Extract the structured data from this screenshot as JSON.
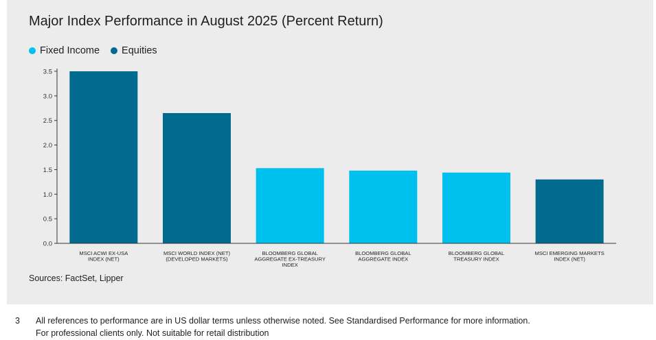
{
  "chart_data": {
    "type": "bar",
    "title": "Major Index Performance in August 2025 (Percent Return)",
    "xlabel": "",
    "ylabel": "",
    "ylim": [
      0,
      3.5
    ],
    "yticks": [
      "0.0",
      "0.5",
      "1.0",
      "1.5",
      "2.0",
      "2.5",
      "3.0",
      "3.5"
    ],
    "grid": false,
    "legend_position": "top-left",
    "legend": [
      {
        "name": "Fixed Income",
        "color": "#00c0f0"
      },
      {
        "name": "Equities",
        "color": "#006b8f"
      }
    ],
    "categories": [
      [
        "MSCI ACWI EX-USA",
        "INDEX (NET)"
      ],
      [
        "MSCI WORLD INDEX (NET)",
        "(DEVELOPED MARKETS)"
      ],
      [
        "BLOOMBERG GLOBAL",
        "AGGREGATE EX-TREASURY",
        "INDEX"
      ],
      [
        "BLOOMBERG GLOBAL",
        "AGGREGATE INDEX"
      ],
      [
        "BLOOMBERG GLOBAL",
        "TREASURY INDEX"
      ],
      [
        "MSCI EMERGING MARKETS",
        "INDEX (NET)"
      ]
    ],
    "values": [
      3.5,
      2.65,
      1.53,
      1.48,
      1.44,
      1.3
    ],
    "bar_series": [
      "Equities",
      "Equities",
      "Fixed Income",
      "Fixed Income",
      "Fixed Income",
      "Equities"
    ]
  },
  "source": "Sources: FactSet, Lipper",
  "footnote": {
    "number": "3",
    "line1": "All references to performance are in US dollar terms unless otherwise noted. See Standardised Performance for more information.",
    "line2": "For professional clients only. Not suitable for retail distribution"
  }
}
